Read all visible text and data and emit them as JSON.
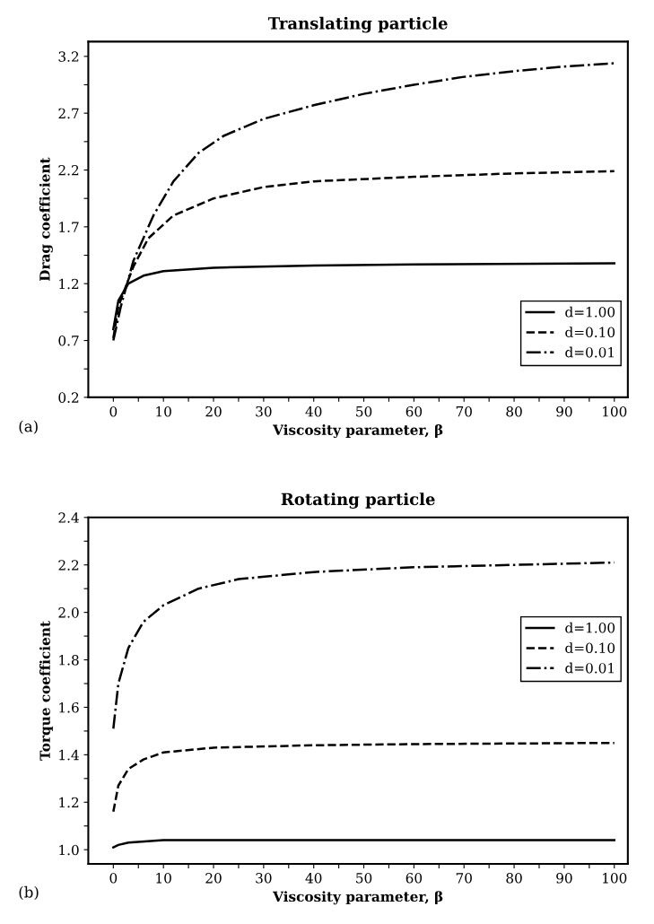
{
  "chart_data": [
    {
      "type": "line",
      "title": "Translating particle",
      "xlabel": "Viscosity parameter, β",
      "ylabel": "Drag coefficient",
      "annotations": [
        "(a)"
      ],
      "legend": "lower right",
      "grid": false,
      "xlim": [
        -5,
        102.7
      ],
      "ylim": [
        0.2,
        3.33
      ],
      "xticks": [
        0,
        {
          "value": 5,
          "label": null
        },
        10,
        {
          "value": 15,
          "label": null
        },
        20,
        {
          "value": 25,
          "label": null
        },
        30,
        {
          "value": 35,
          "label": null
        },
        40,
        {
          "value": 45,
          "label": null
        },
        50,
        {
          "value": 55,
          "label": null
        },
        60,
        {
          "value": 65,
          "label": null
        },
        70,
        {
          "value": 75,
          "label": null
        },
        80,
        {
          "value": 85,
          "label": null
        },
        90,
        {
          "value": 95,
          "label": null
        },
        100
      ],
      "yticks": [
        0.2,
        {
          "value": 0.45,
          "label": null
        },
        0.7,
        {
          "value": 0.95,
          "label": null
        },
        1.2,
        {
          "value": 1.45,
          "label": null
        },
        1.7,
        {
          "value": 1.95,
          "label": null
        },
        2.2,
        {
          "value": 2.45,
          "label": null
        },
        2.7,
        {
          "value": 2.95,
          "label": null
        },
        3.2
      ],
      "series": [
        {
          "name": "d=1.00",
          "color": "#000000",
          "line_style": "solid",
          "x": [
            0,
            1,
            3,
            6,
            10,
            20,
            40,
            60,
            100
          ],
          "values": [
            0.8,
            1.05,
            1.2,
            1.27,
            1.31,
            1.34,
            1.36,
            1.37,
            1.38
          ]
        },
        {
          "name": "d=0.10",
          "color": "#000000",
          "line_style": "dashed",
          "x": [
            0,
            1,
            4,
            7,
            12,
            20,
            30,
            40,
            60,
            80,
            100
          ],
          "values": [
            0.72,
            1.0,
            1.35,
            1.6,
            1.8,
            1.95,
            2.05,
            2.1,
            2.14,
            2.17,
            2.19
          ]
        },
        {
          "name": "d=0.01",
          "color": "#000000",
          "line_style": "dashdot",
          "x": [
            0,
            1.5,
            4,
            8,
            12,
            17,
            22,
            30,
            40,
            50,
            60,
            70,
            80,
            90,
            100
          ],
          "values": [
            0.7,
            1.0,
            1.4,
            1.8,
            2.1,
            2.35,
            2.5,
            2.65,
            2.77,
            2.87,
            2.95,
            3.02,
            3.07,
            3.11,
            3.14
          ]
        }
      ]
    },
    {
      "type": "line",
      "title": "Rotating particle",
      "xlabel": "Viscosity parameter, β",
      "ylabel": "Torque coefficient",
      "annotations": [
        "(b)"
      ],
      "legend": "right",
      "grid": false,
      "xlim": [
        -5,
        102.7
      ],
      "ylim": [
        0.94,
        2.4
      ],
      "xticks": [
        0,
        {
          "value": 5,
          "label": null
        },
        10,
        {
          "value": 15,
          "label": null
        },
        20,
        {
          "value": 25,
          "label": null
        },
        30,
        {
          "value": 35,
          "label": null
        },
        40,
        {
          "value": 45,
          "label": null
        },
        50,
        {
          "value": 55,
          "label": null
        },
        60,
        {
          "value": 65,
          "label": null
        },
        70,
        {
          "value": 75,
          "label": null
        },
        80,
        {
          "value": 85,
          "label": null
        },
        90,
        {
          "value": 95,
          "label": null
        },
        100
      ],
      "yticks": [
        {
          "value": 1.0,
          "label": "1.0"
        },
        {
          "value": 1.1,
          "label": null
        },
        1.2,
        {
          "value": 1.3,
          "label": null
        },
        1.4,
        {
          "value": 1.5,
          "label": null
        },
        1.6,
        {
          "value": 1.7,
          "label": null
        },
        1.8,
        {
          "value": 1.9,
          "label": null
        },
        {
          "value": 2.0,
          "label": "2.0"
        },
        {
          "value": 2.1,
          "label": null
        },
        2.2,
        {
          "value": 2.3,
          "label": null
        },
        2.4
      ],
      "series": [
        {
          "name": "d=1.00",
          "color": "#000000",
          "line_style": "solid",
          "x": [
            0,
            1,
            3,
            10,
            40,
            100
          ],
          "values": [
            1.01,
            1.02,
            1.03,
            1.04,
            1.04,
            1.04
          ]
        },
        {
          "name": "d=0.10",
          "color": "#000000",
          "line_style": "dashed",
          "x": [
            0,
            1,
            3,
            6,
            10,
            20,
            40,
            60,
            100
          ],
          "values": [
            1.16,
            1.27,
            1.34,
            1.38,
            1.41,
            1.43,
            1.44,
            1.445,
            1.45
          ]
        },
        {
          "name": "d=0.01",
          "color": "#000000",
          "line_style": "dashdot",
          "x": [
            0,
            1,
            3,
            6,
            10,
            17,
            25,
            40,
            60,
            80,
            100
          ],
          "values": [
            1.51,
            1.7,
            1.85,
            1.96,
            2.03,
            2.1,
            2.14,
            2.17,
            2.19,
            2.2,
            2.21
          ]
        }
      ]
    }
  ]
}
